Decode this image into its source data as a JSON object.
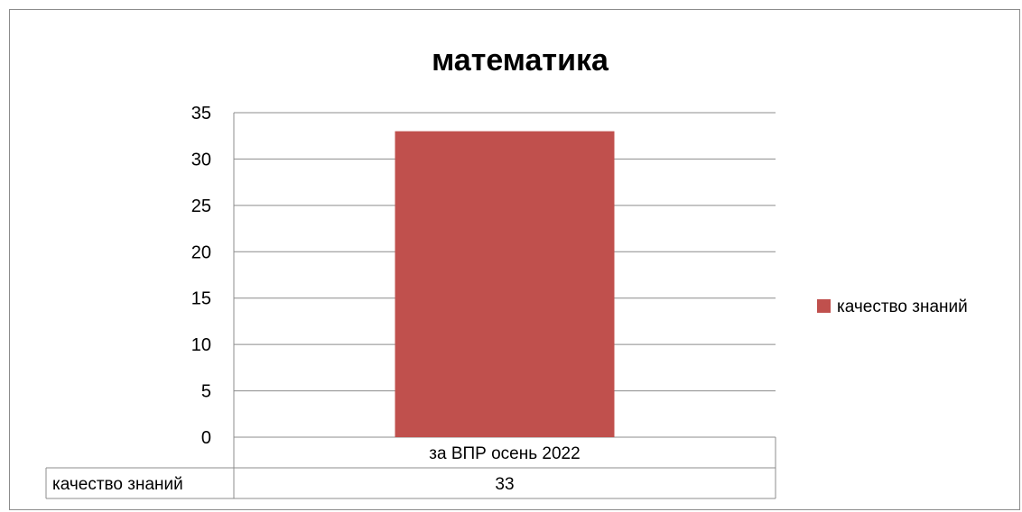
{
  "chart_data": {
    "type": "bar",
    "title": "математика",
    "categories": [
      "за ВПР осень 2022"
    ],
    "series": [
      {
        "name": "качество знаний",
        "values": [
          33
        ],
        "color": "#c0504d"
      }
    ],
    "ylim": [
      0,
      35
    ],
    "yticks": [
      0,
      5,
      10,
      15,
      20,
      25,
      30,
      35
    ],
    "grid": true,
    "legend_position": "right",
    "data_table": true,
    "xlabel": "",
    "ylabel": ""
  }
}
